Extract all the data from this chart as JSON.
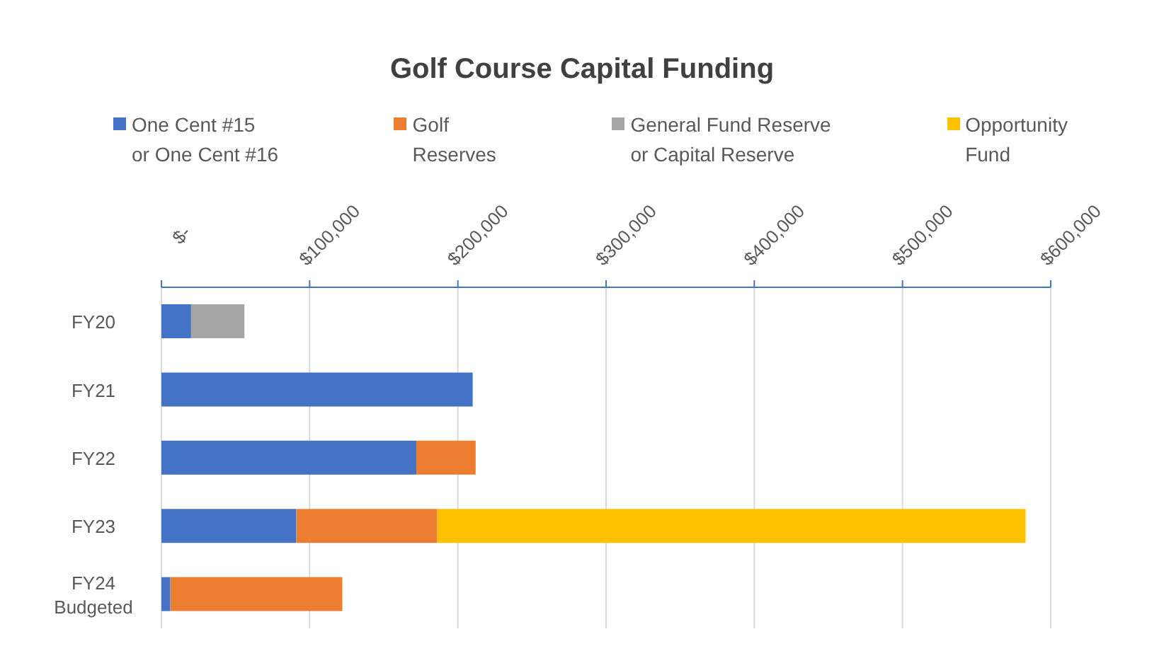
{
  "chart_data": {
    "type": "bar",
    "title": "Golf Course Capital Funding",
    "orientation": "horizontal",
    "stacked": true,
    "categories": [
      "FY20",
      "FY21",
      "FY22",
      "FY23",
      "FY24\nBudgeted"
    ],
    "series": [
      {
        "name": "One Cent #15\nor One Cent #16",
        "color": "#4472c4",
        "values": [
          20000,
          210000,
          172000,
          91000,
          6000
        ]
      },
      {
        "name": "Golf\nReserves",
        "color": "#ed7d31",
        "values": [
          0,
          0,
          40000,
          95000,
          116000
        ]
      },
      {
        "name": "General Fund Reserve\nor Capital Reserve",
        "color": "#a5a5a5",
        "values": [
          36000,
          0,
          0,
          0,
          0
        ]
      },
      {
        "name": "Opportunity\nFund",
        "color": "#ffc000",
        "values": [
          0,
          0,
          0,
          397000,
          0
        ]
      }
    ],
    "xlim": [
      0,
      600000
    ],
    "xticks": [
      {
        "value": 0,
        "label": "$-"
      },
      {
        "value": 100000,
        "label": "$100,000"
      },
      {
        "value": 200000,
        "label": "$200,000"
      },
      {
        "value": 300000,
        "label": "$300,000"
      },
      {
        "value": 400000,
        "label": "$400,000"
      },
      {
        "value": 500000,
        "label": "$500,000"
      },
      {
        "value": 600000,
        "label": "$600,000"
      }
    ],
    "grid": "x",
    "legend": "top"
  }
}
